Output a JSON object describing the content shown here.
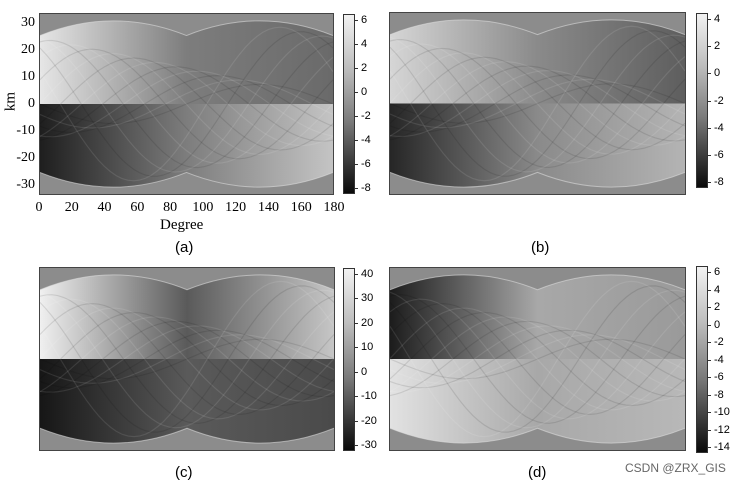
{
  "panels": [
    {
      "id": "a",
      "caption": "(a)",
      "colorbar_ticks": [
        "6",
        "4",
        "2",
        "0",
        "-2",
        "-4",
        "-6",
        "-8"
      ],
      "lobe_top": [
        "#e6e6e6",
        "#6a6a6a"
      ],
      "lobe_bottom": [
        "#1e1e1e",
        "#c4c4c4"
      ],
      "middle": "#7d7d7d"
    },
    {
      "id": "b",
      "caption": "(b)",
      "colorbar_ticks": [
        "4",
        "2",
        "0",
        "-2",
        "-4",
        "-6",
        "-8"
      ],
      "lobe_top": [
        "#d6d6d6",
        "#5e5e5e"
      ],
      "lobe_bottom": [
        "#262626",
        "#b4b4b4"
      ],
      "middle": "#8a8a8a"
    },
    {
      "id": "c",
      "caption": "(c)",
      "colorbar_ticks": [
        "40",
        "30",
        "20",
        "10",
        "0",
        "-10",
        "-20",
        "-30"
      ],
      "lobe_top": [
        "#f0f0f0",
        "#c6c6c6"
      ],
      "lobe_bottom": [
        "#161616",
        "#4a4a4a"
      ],
      "middle": "#5a5a5a"
    },
    {
      "id": "d",
      "caption": "(d)",
      "colorbar_ticks": [
        "6",
        "4",
        "2",
        "0",
        "-2",
        "-4",
        "-6",
        "-8",
        "-10",
        "-12",
        "-14"
      ],
      "lobe_top": [
        "#1c1c1c",
        "#9a9a9a"
      ],
      "lobe_bottom": [
        "#e2e2e2",
        "#b8b8b8"
      ],
      "middle": "#a8a8a8"
    }
  ],
  "axes_a": {
    "ylabel": "km",
    "xlabel": "Degree",
    "yticks": [
      "30",
      "20",
      "10",
      "0",
      "-10",
      "-20",
      "-30"
    ],
    "xticks": [
      "0",
      "20",
      "40",
      "60",
      "80",
      "100",
      "120",
      "140",
      "160",
      "180"
    ]
  },
  "watermark": "CSDN @ZRX_GIS"
}
